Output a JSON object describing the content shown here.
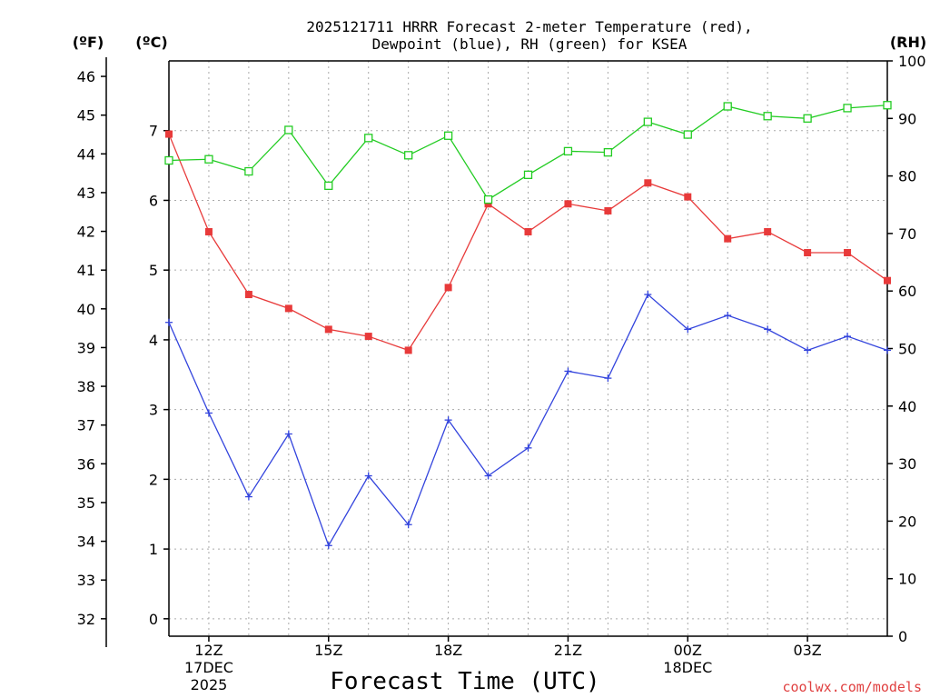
{
  "title_line1": "2025121711 HRRR Forecast 2-meter Temperature (red),",
  "title_line2": "Dewpoint (blue), RH (green) for KSEA",
  "units": {
    "fahrenheit": "(ºF)",
    "celsius": "(ºC)",
    "rh": "(RH)"
  },
  "xlabel": "Forecast Time (UTC)",
  "credit": "coolwx.com/models",
  "colors": {
    "temperature": "#e83a3a",
    "dewpoint": "#3344dd",
    "rh": "#22cc22",
    "grid": "#aaaaaa",
    "credit": "#e04040"
  },
  "chart_data": {
    "type": "line",
    "title": "2025121711 HRRR Forecast 2-meter Temperature (red), Dewpoint (blue), RH (green) for KSEA",
    "xlabel": "Forecast Time (UTC)",
    "x_hours": [
      11,
      12,
      13,
      14,
      15,
      16,
      17,
      18,
      19,
      20,
      21,
      22,
      23,
      24,
      25,
      26,
      27,
      28,
      29
    ],
    "xlim": [
      11,
      29
    ],
    "x_ticks": [
      {
        "hour": 12,
        "lines": [
          "12Z",
          "17DEC",
          "2025"
        ]
      },
      {
        "hour": 15,
        "lines": [
          "15Z"
        ]
      },
      {
        "hour": 18,
        "lines": [
          "18Z"
        ]
      },
      {
        "hour": 21,
        "lines": [
          "21Z"
        ]
      },
      {
        "hour": 24,
        "lines": [
          "00Z",
          "18DEC"
        ]
      },
      {
        "hour": 27,
        "lines": [
          "03Z"
        ]
      }
    ],
    "axes": {
      "celsius": {
        "label": "(ºC)",
        "lim": [
          -0.25,
          8.0
        ],
        "ticks": [
          0,
          1,
          2,
          3,
          4,
          5,
          6,
          7
        ]
      },
      "fahrenheit": {
        "label": "(ºF)",
        "lim": [
          31.55,
          46.4
        ],
        "ticks": [
          32,
          33,
          34,
          35,
          36,
          37,
          38,
          39,
          40,
          41,
          42,
          43,
          44,
          45,
          46
        ]
      },
      "rh": {
        "label": "(RH)",
        "lim": [
          0,
          100
        ],
        "ticks": [
          0,
          10,
          20,
          30,
          40,
          50,
          60,
          70,
          80,
          90,
          100
        ]
      }
    },
    "series": [
      {
        "name": "Temperature",
        "units": "C",
        "color": "red",
        "marker": "filled-square",
        "values": [
          6.95,
          5.55,
          4.65,
          4.45,
          4.15,
          4.05,
          3.85,
          4.75,
          5.95,
          5.55,
          5.95,
          5.85,
          6.25,
          6.05,
          5.45,
          5.55,
          5.25,
          5.25,
          4.85
        ]
      },
      {
        "name": "Dewpoint",
        "units": "C",
        "color": "blue",
        "marker": "plus",
        "values": [
          4.25,
          2.95,
          1.75,
          2.65,
          1.05,
          2.05,
          1.35,
          2.85,
          2.05,
          2.45,
          3.55,
          3.45,
          4.65,
          4.15,
          4.35,
          4.15,
          3.85,
          4.05,
          3.85
        ]
      },
      {
        "name": "RH",
        "units": "%",
        "color": "green",
        "marker": "open-square",
        "values": [
          82.7,
          82.9,
          80.8,
          88.0,
          78.3,
          86.6,
          83.6,
          87.0,
          75.9,
          80.2,
          84.3,
          84.1,
          89.4,
          87.2,
          92.1,
          90.4,
          90.0,
          91.8,
          92.3
        ]
      }
    ]
  }
}
